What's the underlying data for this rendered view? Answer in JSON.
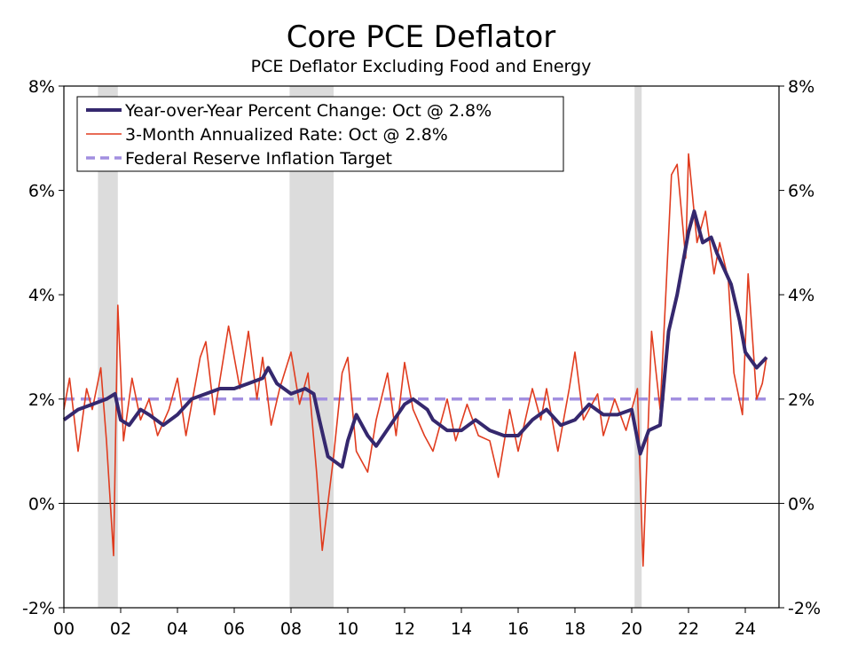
{
  "chart_data": {
    "type": "line",
    "title": "Core PCE Deflator",
    "subtitle": "PCE Deflator Excluding Food and Energy",
    "xlabel": "",
    "ylabel": "",
    "xlim": [
      2000,
      2025
    ],
    "ylim": [
      -2,
      8
    ],
    "x_tick_labels": [
      "00",
      "02",
      "04",
      "06",
      "08",
      "10",
      "12",
      "14",
      "16",
      "18",
      "20",
      "22",
      "24"
    ],
    "y_tick_labels": [
      "-2%",
      "0%",
      "2%",
      "4%",
      "6%",
      "8%"
    ],
    "y_ticks": [
      -2,
      0,
      2,
      4,
      6,
      8
    ],
    "legend_position": "top-left",
    "recessions": [
      [
        2001.2,
        2001.9
      ],
      [
        2007.95,
        2009.5
      ],
      [
        2020.1,
        2020.35
      ]
    ],
    "colors": {
      "yoy": "#35286e",
      "three_month": "#e03c1f",
      "target": "#a28fe0",
      "recession": "#dcdcdc"
    },
    "series": [
      {
        "name": "Year-over-Year Percent Change: Oct @ 2.8%",
        "x": [
          2000.0,
          2000.5,
          2001.0,
          2001.5,
          2001.8,
          2002.0,
          2002.3,
          2002.7,
          2003.0,
          2003.5,
          2004.0,
          2004.5,
          2005.0,
          2005.5,
          2006.0,
          2006.5,
          2007.0,
          2007.2,
          2007.5,
          2008.0,
          2008.5,
          2008.8,
          2009.0,
          2009.3,
          2009.8,
          2010.0,
          2010.3,
          2010.7,
          2011.0,
          2011.5,
          2012.0,
          2012.3,
          2012.8,
          2013.0,
          2013.5,
          2014.0,
          2014.5,
          2015.0,
          2015.5,
          2016.0,
          2016.5,
          2017.0,
          2017.5,
          2018.0,
          2018.5,
          2019.0,
          2019.5,
          2020.0,
          2020.3,
          2020.6,
          2021.0,
          2021.3,
          2021.6,
          2022.0,
          2022.2,
          2022.5,
          2022.8,
          2023.0,
          2023.5,
          2023.8,
          2024.0,
          2024.4,
          2024.75
        ],
        "values": [
          1.6,
          1.8,
          1.9,
          2.0,
          2.1,
          1.6,
          1.5,
          1.8,
          1.7,
          1.5,
          1.7,
          2.0,
          2.1,
          2.2,
          2.2,
          2.3,
          2.4,
          2.6,
          2.3,
          2.1,
          2.2,
          2.1,
          1.6,
          0.9,
          0.7,
          1.2,
          1.7,
          1.3,
          1.1,
          1.5,
          1.9,
          2.0,
          1.8,
          1.6,
          1.4,
          1.4,
          1.6,
          1.4,
          1.3,
          1.3,
          1.6,
          1.8,
          1.5,
          1.6,
          1.9,
          1.7,
          1.7,
          1.8,
          0.95,
          1.4,
          1.5,
          3.3,
          4.0,
          5.2,
          5.6,
          5.0,
          5.1,
          4.8,
          4.2,
          3.5,
          2.9,
          2.6,
          2.8
        ]
      },
      {
        "name": "3-Month Annualized Rate: Oct @ 2.8%",
        "x": [
          2000.0,
          2000.2,
          2000.5,
          2000.8,
          2001.0,
          2001.3,
          2001.5,
          2001.75,
          2001.9,
          2002.1,
          2002.4,
          2002.7,
          2003.0,
          2003.3,
          2003.7,
          2004.0,
          2004.3,
          2004.8,
          2005.0,
          2005.3,
          2005.8,
          2006.2,
          2006.5,
          2006.8,
          2007.0,
          2007.3,
          2007.6,
          2008.0,
          2008.3,
          2008.6,
          2008.9,
          2009.1,
          2009.5,
          2009.8,
          2010.0,
          2010.3,
          2010.7,
          2011.0,
          2011.4,
          2011.7,
          2012.0,
          2012.3,
          2012.7,
          2013.0,
          2013.5,
          2013.8,
          2014.2,
          2014.6,
          2015.0,
          2015.3,
          2015.7,
          2016.0,
          2016.5,
          2016.8,
          2017.0,
          2017.4,
          2017.8,
          2018.0,
          2018.3,
          2018.8,
          2019.0,
          2019.4,
          2019.8,
          2020.2,
          2020.4,
          2020.7,
          2021.0,
          2021.2,
          2021.4,
          2021.6,
          2021.9,
          2022.0,
          2022.3,
          2022.6,
          2022.9,
          2023.1,
          2023.4,
          2023.6,
          2023.9,
          2024.1,
          2024.4,
          2024.6,
          2024.75
        ],
        "values": [
          1.8,
          2.4,
          1.0,
          2.2,
          1.8,
          2.6,
          1.2,
          -1.0,
          3.8,
          1.2,
          2.4,
          1.6,
          2.0,
          1.3,
          1.8,
          2.4,
          1.3,
          2.8,
          3.1,
          1.7,
          3.4,
          2.2,
          3.3,
          2.0,
          2.8,
          1.5,
          2.2,
          2.9,
          1.9,
          2.5,
          0.6,
          -0.9,
          0.9,
          2.5,
          2.8,
          1.0,
          0.6,
          1.6,
          2.5,
          1.3,
          2.7,
          1.8,
          1.3,
          1.0,
          2.0,
          1.2,
          1.9,
          1.3,
          1.2,
          0.5,
          1.8,
          1.0,
          2.2,
          1.6,
          2.2,
          1.0,
          2.2,
          2.9,
          1.6,
          2.1,
          1.3,
          2.0,
          1.4,
          2.2,
          -1.2,
          3.3,
          1.8,
          4.0,
          6.3,
          6.5,
          4.7,
          6.7,
          5.0,
          5.6,
          4.4,
          5.0,
          4.3,
          2.5,
          1.7,
          4.4,
          2.0,
          2.3,
          2.8
        ]
      },
      {
        "name": "Federal Reserve Inflation Target",
        "x": [
          2000,
          2024.75
        ],
        "values": [
          2,
          2
        ]
      }
    ]
  }
}
